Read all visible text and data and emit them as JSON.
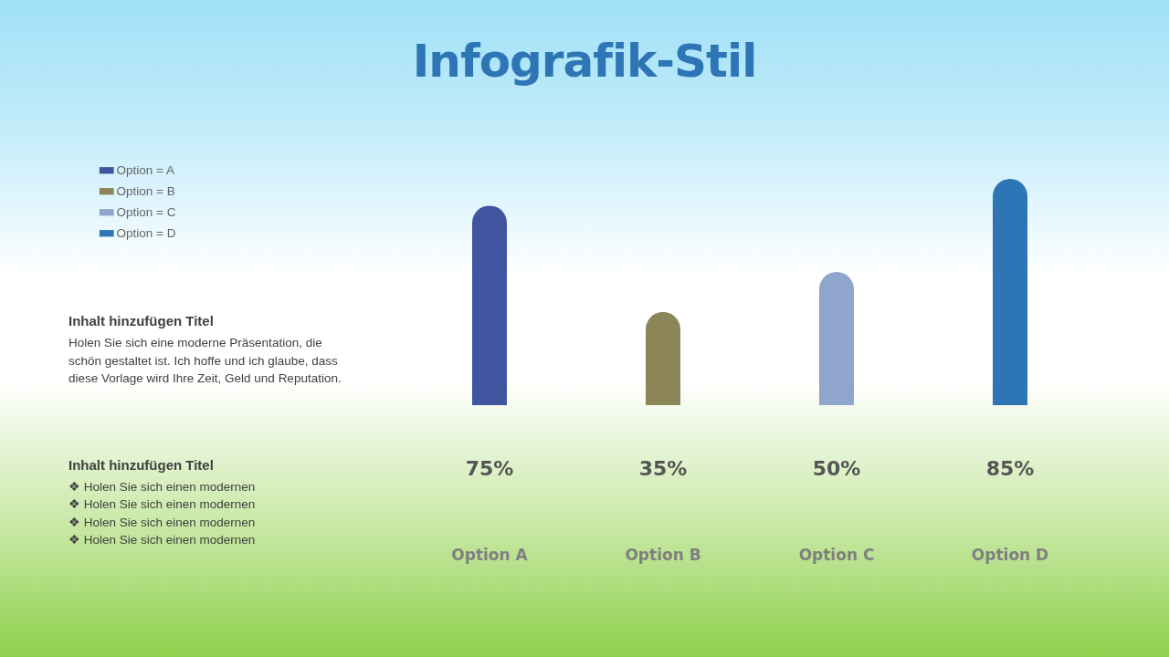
{
  "chart_data": {
    "type": "bar",
    "title": "Infografik-Stil",
    "categories": [
      "Option A",
      "Option B",
      "Option C",
      "Option D"
    ],
    "series": [
      {
        "name": "Option = A",
        "color": "#3f559f",
        "values": [
          75,
          null,
          null,
          null
        ],
        "value_labels": [
          "75%",
          null,
          null,
          null
        ]
      },
      {
        "name": "Option = B",
        "color": "#8b8558",
        "values": [
          null,
          35,
          null,
          null
        ],
        "value_labels": [
          null,
          "35%",
          null,
          null
        ]
      },
      {
        "name": "Option = C",
        "color": "#8fa5cc",
        "values": [
          null,
          null,
          50,
          null
        ],
        "value_labels": [
          null,
          null,
          "50%",
          null
        ]
      },
      {
        "name": "Option = D",
        "color": "#2e75b6",
        "values": [
          null,
          null,
          null,
          85
        ],
        "value_labels": [
          null,
          null,
          null,
          "85%"
        ]
      }
    ],
    "legend": "left",
    "tick_labels": "x",
    "grid": false,
    "annotations": [
      "Inhalt hinzufügen Titel",
      "Holen Sie sich eine moderne Präsentation, die schön gestaltet ist. Ich hoffe und ich glaube, dass diese Vorlage wird Ihre  Zeit, Geld und Reputation.",
      "Inhalt hinzufügen Titel",
      "❖ Holen Sie sich einen modernen",
      "❖ Holen Sie sich einen modernen",
      "❖ Holen Sie sich einen modernen",
      "❖ Holen Sie sich einen modernen"
    ]
  }
}
